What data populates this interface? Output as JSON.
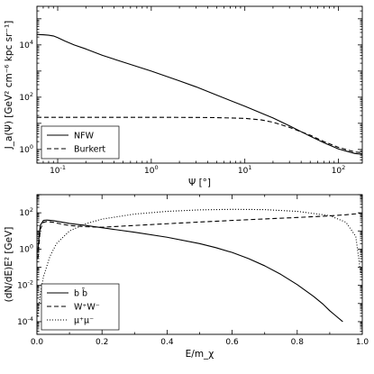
{
  "chart_data": [
    {
      "type": "line",
      "xscale": "log",
      "yscale": "log",
      "xlim": [
        0.06,
        180
      ],
      "ylim": [
        0.3,
        300000
      ],
      "xlabel": "Ψ [°]",
      "ylabel": "J_a(Ψ) [GeV² cm⁻⁶ kpc sr⁻¹]",
      "xticks": [
        {
          "value": 0.1,
          "base": "10",
          "exp": "-1"
        },
        {
          "value": 1,
          "base": "10",
          "exp": "0"
        },
        {
          "value": 10,
          "base": "10",
          "exp": "1"
        },
        {
          "value": 100,
          "base": "10",
          "exp": "2"
        }
      ],
      "yticks": [
        {
          "value": 1,
          "base": "10",
          "exp": "0"
        },
        {
          "value": 100,
          "base": "10",
          "exp": "2"
        },
        {
          "value": 10000,
          "base": "10",
          "exp": "4"
        }
      ],
      "legend": {
        "position": "lower-left"
      },
      "series": [
        {
          "name": "NFW",
          "dash": "solid",
          "x": [
            0.06,
            0.07,
            0.08,
            0.09,
            0.1,
            0.12,
            0.15,
            0.2,
            0.3,
            0.5,
            1,
            2,
            3,
            5,
            10,
            20,
            30,
            50,
            70,
            100,
            150,
            180
          ],
          "y": [
            25000,
            24500,
            23500,
            22000,
            19000,
            14000,
            10000,
            7000,
            4000,
            2200,
            1000,
            420,
            250,
            120,
            45,
            16,
            8,
            3.2,
            1.8,
            1.05,
            0.7,
            0.65
          ]
        },
        {
          "name": "Burkert",
          "dash": "dashed",
          "x": [
            0.06,
            0.1,
            1,
            3,
            5,
            10,
            15,
            20,
            30,
            50,
            70,
            100,
            150,
            180
          ],
          "y": [
            17,
            17,
            17,
            16.8,
            16.5,
            15.5,
            13.5,
            11,
            7,
            3.5,
            2.0,
            1.2,
            0.8,
            0.75
          ]
        }
      ]
    },
    {
      "type": "line",
      "xscale": "linear",
      "yscale": "log",
      "xlim": [
        0.0,
        1.0
      ],
      "ylim": [
        2e-05,
        1000
      ],
      "xlabel": "E/m_χ",
      "ylabel": "(dN/dE)E² [GeV]",
      "xticks": [
        {
          "value": 0.0,
          "label": "0.0"
        },
        {
          "value": 0.2,
          "label": "0.2"
        },
        {
          "value": 0.4,
          "label": "0.4"
        },
        {
          "value": 0.6,
          "label": "0.6"
        },
        {
          "value": 0.8,
          "label": "0.8"
        },
        {
          "value": 1.0,
          "label": "1.0"
        }
      ],
      "yticks": [
        {
          "value": 0.0001,
          "base": "10",
          "exp": "-4"
        },
        {
          "value": 0.01,
          "base": "10",
          "exp": "-2"
        },
        {
          "value": 1,
          "base": "10",
          "exp": "0"
        },
        {
          "value": 100,
          "base": "10",
          "exp": "2"
        }
      ],
      "legend": {
        "position": "lower-left"
      },
      "series": [
        {
          "name": "b b̄",
          "dash": "solid",
          "x": [
            0.003,
            0.01,
            0.02,
            0.03,
            0.05,
            0.08,
            0.1,
            0.15,
            0.2,
            0.3,
            0.4,
            0.5,
            0.55,
            0.6,
            0.65,
            0.7,
            0.75,
            0.8,
            0.85,
            0.88,
            0.9,
            0.92,
            0.94
          ],
          "y": [
            1,
            20,
            38,
            40,
            37,
            30,
            26,
            20,
            15,
            8.5,
            4.5,
            2.0,
            1.2,
            0.65,
            0.3,
            0.12,
            0.04,
            0.011,
            0.0025,
            0.0009,
            0.0004,
            0.0002,
            0.0001
          ]
        },
        {
          "name": "W⁺W⁻",
          "dash": "dashed",
          "x": [
            0.003,
            0.01,
            0.02,
            0.03,
            0.05,
            0.08,
            0.1,
            0.15,
            0.2,
            0.3,
            0.4,
            0.5,
            0.6,
            0.7,
            0.8,
            0.9,
            0.95,
            0.98,
            0.995
          ],
          "y": [
            0.3,
            12,
            30,
            33,
            30,
            23,
            20,
            17,
            16,
            20,
            25,
            31,
            38,
            46,
            55,
            68,
            78,
            88,
            95
          ]
        },
        {
          "name": "μ⁺μ⁻",
          "dash": "dotted",
          "x": [
            0.002,
            0.01,
            0.02,
            0.04,
            0.06,
            0.1,
            0.15,
            0.2,
            0.3,
            0.4,
            0.5,
            0.6,
            0.7,
            0.8,
            0.9,
            0.95,
            0.98,
            0.995
          ],
          "y": [
            0.0002,
            0.003,
            0.03,
            0.4,
            2,
            10,
            25,
            45,
            85,
            120,
            145,
            155,
            150,
            120,
            70,
            30,
            5,
            0.05
          ]
        }
      ]
    }
  ]
}
